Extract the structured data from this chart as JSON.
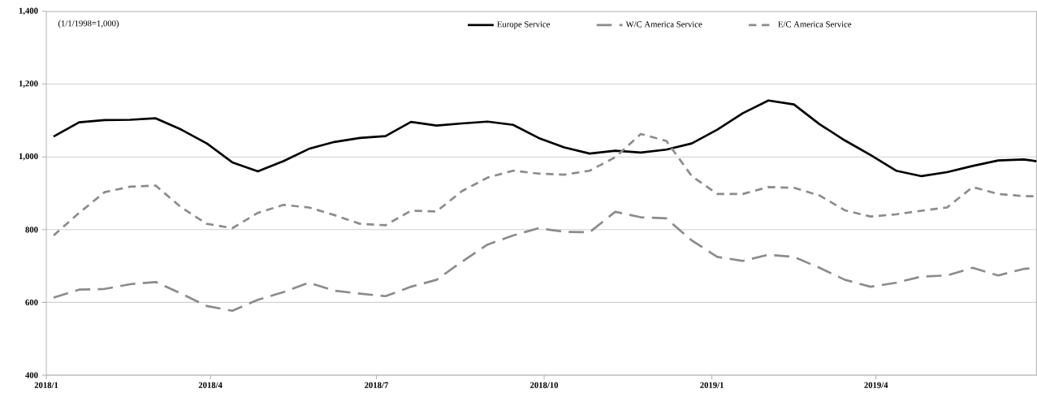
{
  "chart_data": {
    "type": "line",
    "annotations": [
      "(1/1/1998=1,000)"
    ],
    "x": [
      "2018-01-05",
      "2018-01-19",
      "2018-02-02",
      "2018-02-16",
      "2018-03-02",
      "2018-03-16",
      "2018-03-30",
      "2018-04-13",
      "2018-04-27",
      "2018-05-11",
      "2018-05-25",
      "2018-06-08",
      "2018-06-22",
      "2018-07-06",
      "2018-07-20",
      "2018-08-03",
      "2018-08-17",
      "2018-08-31",
      "2018-09-14",
      "2018-09-28",
      "2018-10-12",
      "2018-10-26",
      "2018-11-09",
      "2018-11-23",
      "2018-12-07",
      "2018-12-21",
      "2019-01-04",
      "2019-01-18",
      "2019-02-01",
      "2019-02-15",
      "2019-03-01",
      "2019-03-15",
      "2019-03-29",
      "2019-04-12",
      "2019-04-26",
      "2019-05-10",
      "2019-05-24",
      "2019-06-07",
      "2019-06-21",
      "2019-06-28"
    ],
    "series": [
      {
        "name": "Europe Service",
        "color": "#000000",
        "line_style": "solid",
        "values": [
          1056,
          1095,
          1101,
          1102,
          1106,
          1075,
          1037,
          985,
          960,
          988,
          1022,
          1041,
          1052,
          1057,
          1096,
          1086,
          1092,
          1097,
          1088,
          1052,
          1026,
          1009,
          1017,
          1012,
          1020,
          1037,
          1075,
          1120,
          1155,
          1144,
          1090,
          1045,
          1005,
          962,
          947,
          958,
          975,
          990,
          993,
          988
        ]
      },
      {
        "name": "W/C America Service",
        "color": "#8c8c8c",
        "line_style": "dashed",
        "values": [
          613,
          635,
          637,
          650,
          656,
          624,
          590,
          577,
          607,
          628,
          654,
          632,
          624,
          617,
          643,
          662,
          712,
          759,
          784,
          804,
          794,
          793,
          849,
          834,
          831,
          770,
          725,
          714,
          731,
          725,
          695,
          662,
          643,
          654,
          671,
          674,
          695,
          674,
          692,
          695
        ]
      },
      {
        "name": "E/C America Service",
        "color": "#8c8c8c",
        "line_style": "dashed",
        "values": [
          784,
          846,
          903,
          918,
          921,
          861,
          816,
          804,
          846,
          868,
          861,
          840,
          816,
          812,
          852,
          850,
          906,
          943,
          962,
          954,
          951,
          962,
          999,
          1063,
          1044,
          947,
          898,
          898,
          917,
          915,
          894,
          853,
          836,
          842,
          852,
          861,
          917,
          898,
          892,
          892
        ]
      }
    ],
    "xlim": [
      "2018-01-01",
      "2019-06-28"
    ],
    "xticks": [
      {
        "value": "2018-01",
        "label": "2018/1"
      },
      {
        "value": "2018-04",
        "label": "2018/4"
      },
      {
        "value": "2018-07",
        "label": "2018/7"
      },
      {
        "value": "2018-10",
        "label": "2018/10"
      },
      {
        "value": "2019-01",
        "label": "2019/1"
      },
      {
        "value": "2019-04",
        "label": "2019/4"
      }
    ],
    "ylim": [
      400,
      1400
    ],
    "yticks": [
      {
        "value": 400,
        "label": "400"
      },
      {
        "value": 600,
        "label": "600"
      },
      {
        "value": 800,
        "label": "800"
      },
      {
        "value": 1000,
        "label": "1,000"
      },
      {
        "value": 1200,
        "label": "1,200"
      },
      {
        "value": 1400,
        "label": "1,400"
      }
    ],
    "grid": "y",
    "legend": "top"
  }
}
